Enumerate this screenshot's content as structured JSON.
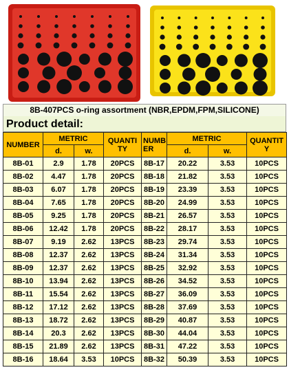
{
  "title": "8B-407PCS o-ring assortment (NBR,EPDM,FPM,SILICONE)",
  "subtitle": "Product detail:",
  "table": {
    "header": {
      "number_left": "NUMBER",
      "metric_left": "METRIC",
      "d_left": "d.",
      "w_left": "w.",
      "quantity_left": [
        "QUANTI",
        "TY"
      ],
      "number_right": [
        "NUMB",
        "ER"
      ],
      "metric_right": "METRIC",
      "d_right": "d.",
      "w_right": "w.",
      "quantity_right": [
        "QUANTIT",
        "Y"
      ]
    },
    "rows": [
      [
        "8B-01",
        "2.9",
        "1.78",
        "20PCS",
        "8B-17",
        "20.22",
        "3.53",
        "10PCS"
      ],
      [
        "8B-02",
        "4.47",
        "1.78",
        "20PCS",
        "8B-18",
        "21.82",
        "3.53",
        "10PCS"
      ],
      [
        "8B-03",
        "6.07",
        "1.78",
        "20PCS",
        "8B-19",
        "23.39",
        "3.53",
        "10PCS"
      ],
      [
        "8B-04",
        "7.65",
        "1.78",
        "20PCS",
        "8B-20",
        "24.99",
        "3.53",
        "10PCS"
      ],
      [
        "8B-05",
        "9.25",
        "1.78",
        "20PCS",
        "8B-21",
        "26.57",
        "3.53",
        "10PCS"
      ],
      [
        "8B-06",
        "12.42",
        "1.78",
        "20PCS",
        "8B-22",
        "28.17",
        "3.53",
        "10PCS"
      ],
      [
        "8B-07",
        "9.19",
        "2.62",
        "13PCS",
        "8B-23",
        "29.74",
        "3.53",
        "10PCS"
      ],
      [
        "8B-08",
        "12.37",
        "2.62",
        "13PCS",
        "8B-24",
        "31.34",
        "3.53",
        "10PCS"
      ],
      [
        "8B-09",
        "12.37",
        "2.62",
        "13PCS",
        "8B-25",
        "32.92",
        "3.53",
        "10PCS"
      ],
      [
        "8B-10",
        "13.94",
        "2.62",
        "13PCS",
        "8B-26",
        "34.52",
        "3.53",
        "10PCS"
      ],
      [
        "8B-11",
        "15.54",
        "2.62",
        "13PCS",
        "8B-27",
        "36.09",
        "3.53",
        "10PCS"
      ],
      [
        "8B-12",
        "17.12",
        "2.62",
        "13PCS",
        "8B-28",
        "37.69",
        "3.53",
        "10PCS"
      ],
      [
        "8B-13",
        "18.72",
        "2.62",
        "13PCS",
        "8B-29",
        "40.87",
        "3.53",
        "10PCS"
      ],
      [
        "8B-14",
        "20.3",
        "2.62",
        "13PCS",
        "8B-30",
        "44.04",
        "3.53",
        "10PCS"
      ],
      [
        "8B-15",
        "21.89",
        "2.62",
        "13PCS",
        "8B-31",
        "47.22",
        "3.53",
        "10PCS"
      ],
      [
        "8B-16",
        "18.64",
        "3.53",
        "10PCS",
        "8B-32",
        "50.39",
        "3.53",
        "10PCS"
      ]
    ]
  }
}
